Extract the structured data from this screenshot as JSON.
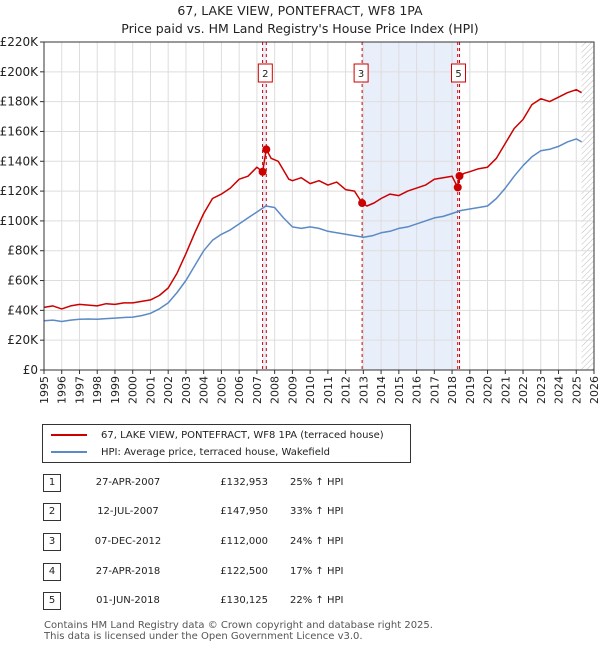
{
  "title": "67, LAKE VIEW, PONTEFRACT, WF8 1PA",
  "subtitle": "Price paid vs. HM Land Registry's House Price Index (HPI)",
  "chart_data": {
    "type": "line",
    "title": "67, LAKE VIEW, PONTEFRACT, WF8 1PA",
    "subtitle": "Price paid vs. HM Land Registry's House Price Index (HPI)",
    "xlabel": "",
    "ylabel": "",
    "xlim": [
      1995,
      2026
    ],
    "ylim": [
      0,
      220000
    ],
    "yticks": [
      0,
      20000,
      40000,
      60000,
      80000,
      100000,
      120000,
      140000,
      160000,
      180000,
      200000,
      220000
    ],
    "ytick_labels": [
      "£0",
      "£20K",
      "£40K",
      "£60K",
      "£80K",
      "£100K",
      "£120K",
      "£140K",
      "£160K",
      "£180K",
      "£200K",
      "£220K"
    ],
    "xticks": [
      1995,
      1996,
      1997,
      1998,
      1999,
      2000,
      2001,
      2002,
      2003,
      2004,
      2005,
      2006,
      2007,
      2008,
      2009,
      2010,
      2011,
      2012,
      2013,
      2014,
      2015,
      2016,
      2017,
      2018,
      2019,
      2020,
      2021,
      2022,
      2023,
      2024,
      2025,
      2026
    ],
    "grid": true,
    "shaded_regions": [
      [
        2007.32,
        2007.53
      ],
      [
        2012.93,
        2018.32
      ],
      [
        2018.41,
        2018.42
      ]
    ],
    "future_hatch_from": 2025.3,
    "series": [
      {
        "name": "67, LAKE VIEW, PONTEFRACT, WF8 1PA (terraced house)",
        "color": "#cc0000",
        "x": [
          1995,
          1995.5,
          1996,
          1996.5,
          1997,
          1997.5,
          1998,
          1998.5,
          1999,
          1999.5,
          2000,
          2000.5,
          2001,
          2001.5,
          2002,
          2002.5,
          2003,
          2003.5,
          2004,
          2004.5,
          2005,
          2005.5,
          2006,
          2006.5,
          2007,
          2007.32,
          2007.53,
          2007.8,
          2008.2,
          2008.6,
          2008.8,
          2009,
          2009.5,
          2010,
          2010.5,
          2011,
          2011.5,
          2012,
          2012.5,
          2012.93,
          2013.2,
          2013.6,
          2014,
          2014.5,
          2015,
          2015.5,
          2016,
          2016.5,
          2017,
          2017.5,
          2018,
          2018.32,
          2018.42,
          2018.7,
          2019,
          2019.5,
          2020,
          2020.5,
          2021,
          2021.5,
          2022,
          2022.5,
          2023,
          2023.5,
          2024,
          2024.5,
          2025,
          2025.3
        ],
        "values": [
          42000,
          43000,
          41000,
          43000,
          44000,
          43500,
          43000,
          44500,
          44000,
          45000,
          45000,
          46000,
          47000,
          50000,
          55000,
          65000,
          78000,
          92000,
          105000,
          115000,
          118000,
          122000,
          128000,
          130000,
          136000,
          132953,
          147950,
          142000,
          140000,
          132000,
          128000,
          127000,
          129000,
          125000,
          127000,
          124000,
          126000,
          121000,
          120000,
          112000,
          110000,
          112000,
          115000,
          118000,
          117000,
          120000,
          122000,
          124000,
          128000,
          129000,
          130000,
          122500,
          130125,
          132000,
          133000,
          135000,
          136000,
          142000,
          152000,
          162000,
          168000,
          178000,
          182000,
          180000,
          183000,
          186000,
          188000,
          186000
        ]
      },
      {
        "name": "HPI: Average price, terraced house, Wakefield",
        "color": "#5b8ac6",
        "x": [
          1995,
          1995.5,
          1996,
          1996.5,
          1997,
          1997.5,
          1998,
          1998.5,
          1999,
          1999.5,
          2000,
          2000.5,
          2001,
          2001.5,
          2002,
          2002.5,
          2003,
          2003.5,
          2004,
          2004.5,
          2005,
          2005.5,
          2006,
          2006.5,
          2007,
          2007.5,
          2008,
          2008.5,
          2009,
          2009.5,
          2010,
          2010.5,
          2011,
          2011.5,
          2012,
          2012.5,
          2013,
          2013.5,
          2014,
          2014.5,
          2015,
          2015.5,
          2016,
          2016.5,
          2017,
          2017.5,
          2018,
          2018.5,
          2019,
          2019.5,
          2020,
          2020.5,
          2021,
          2021.5,
          2022,
          2022.5,
          2023,
          2023.5,
          2024,
          2024.5,
          2025,
          2025.3
        ],
        "values": [
          33000,
          33500,
          32500,
          33500,
          34000,
          34200,
          34000,
          34500,
          34800,
          35200,
          35500,
          36500,
          38000,
          41000,
          45000,
          52000,
          60000,
          70000,
          80000,
          87000,
          91000,
          94000,
          98000,
          102000,
          106000,
          110000,
          109000,
          102000,
          96000,
          95000,
          96000,
          95000,
          93000,
          92000,
          91000,
          90000,
          89000,
          90000,
          92000,
          93000,
          95000,
          96000,
          98000,
          100000,
          102000,
          103000,
          105000,
          107000,
          108000,
          109000,
          110000,
          115000,
          122000,
          130000,
          137000,
          143000,
          147000,
          148000,
          150000,
          153000,
          155000,
          153000
        ]
      }
    ],
    "transactions": [
      {
        "id": "1",
        "date": "27-APR-2007",
        "price": "£132,953",
        "hpi": "25% ↑ HPI",
        "x": 2007.32,
        "y": 132953
      },
      {
        "id": "2",
        "date": "12-JUL-2007",
        "price": "£147,950",
        "hpi": "33% ↑ HPI",
        "x": 2007.53,
        "y": 147950
      },
      {
        "id": "3",
        "date": "07-DEC-2012",
        "price": "£112,000",
        "hpi": "24% ↑ HPI",
        "x": 2012.93,
        "y": 112000
      },
      {
        "id": "4",
        "date": "27-APR-2018",
        "price": "£122,500",
        "hpi": "17% ↑ HPI",
        "x": 2018.32,
        "y": 122500
      },
      {
        "id": "5",
        "date": "01-JUN-2018",
        "price": "£130,125",
        "hpi": "22% ↑ HPI",
        "x": 2018.42,
        "y": 130125
      }
    ],
    "chart_markers": [
      "2",
      "3",
      "5"
    ]
  },
  "legend": {
    "series1_label": "67, LAKE VIEW, PONTEFRACT, WF8 1PA (terraced house)",
    "series2_label": "HPI: Average price, terraced house, Wakefield"
  },
  "footer": {
    "line1": "Contains HM Land Registry data © Crown copyright and database right 2025.",
    "line2": "This data is licensed under the Open Government Licence v3.0."
  }
}
